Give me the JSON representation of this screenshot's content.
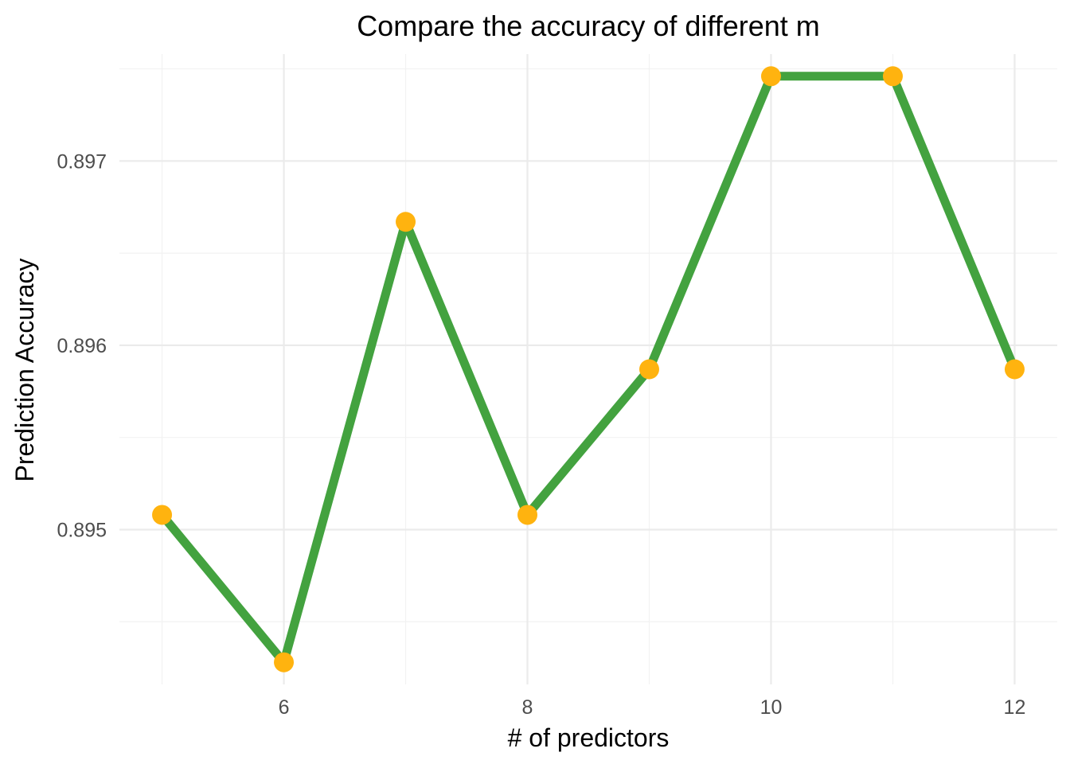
{
  "chart_data": {
    "type": "line",
    "title": "Compare the accuracy of different m",
    "xlabel": "# of predictors",
    "ylabel": "Prediction Accuracy",
    "x": [
      5,
      6,
      7,
      8,
      9,
      10,
      11,
      12
    ],
    "series": [
      {
        "values": [
          0.89508,
          0.89428,
          0.89667,
          0.89508,
          0.89587,
          0.89746,
          0.89746,
          0.89587
        ]
      }
    ],
    "x_ticks": [
      6,
      8,
      10,
      12
    ],
    "x_tick_labels": [
      "6",
      "8",
      "10",
      "12"
    ],
    "y_ticks": [
      0.895,
      0.896,
      0.897
    ],
    "y_tick_labels": [
      "0.895",
      "0.896",
      "0.897"
    ],
    "xlim": [
      4.65,
      12.35
    ],
    "ylim": [
      0.89416,
      0.89758
    ],
    "grid": true,
    "line_color": "#43a23f",
    "point_color": "#ffb30f"
  }
}
